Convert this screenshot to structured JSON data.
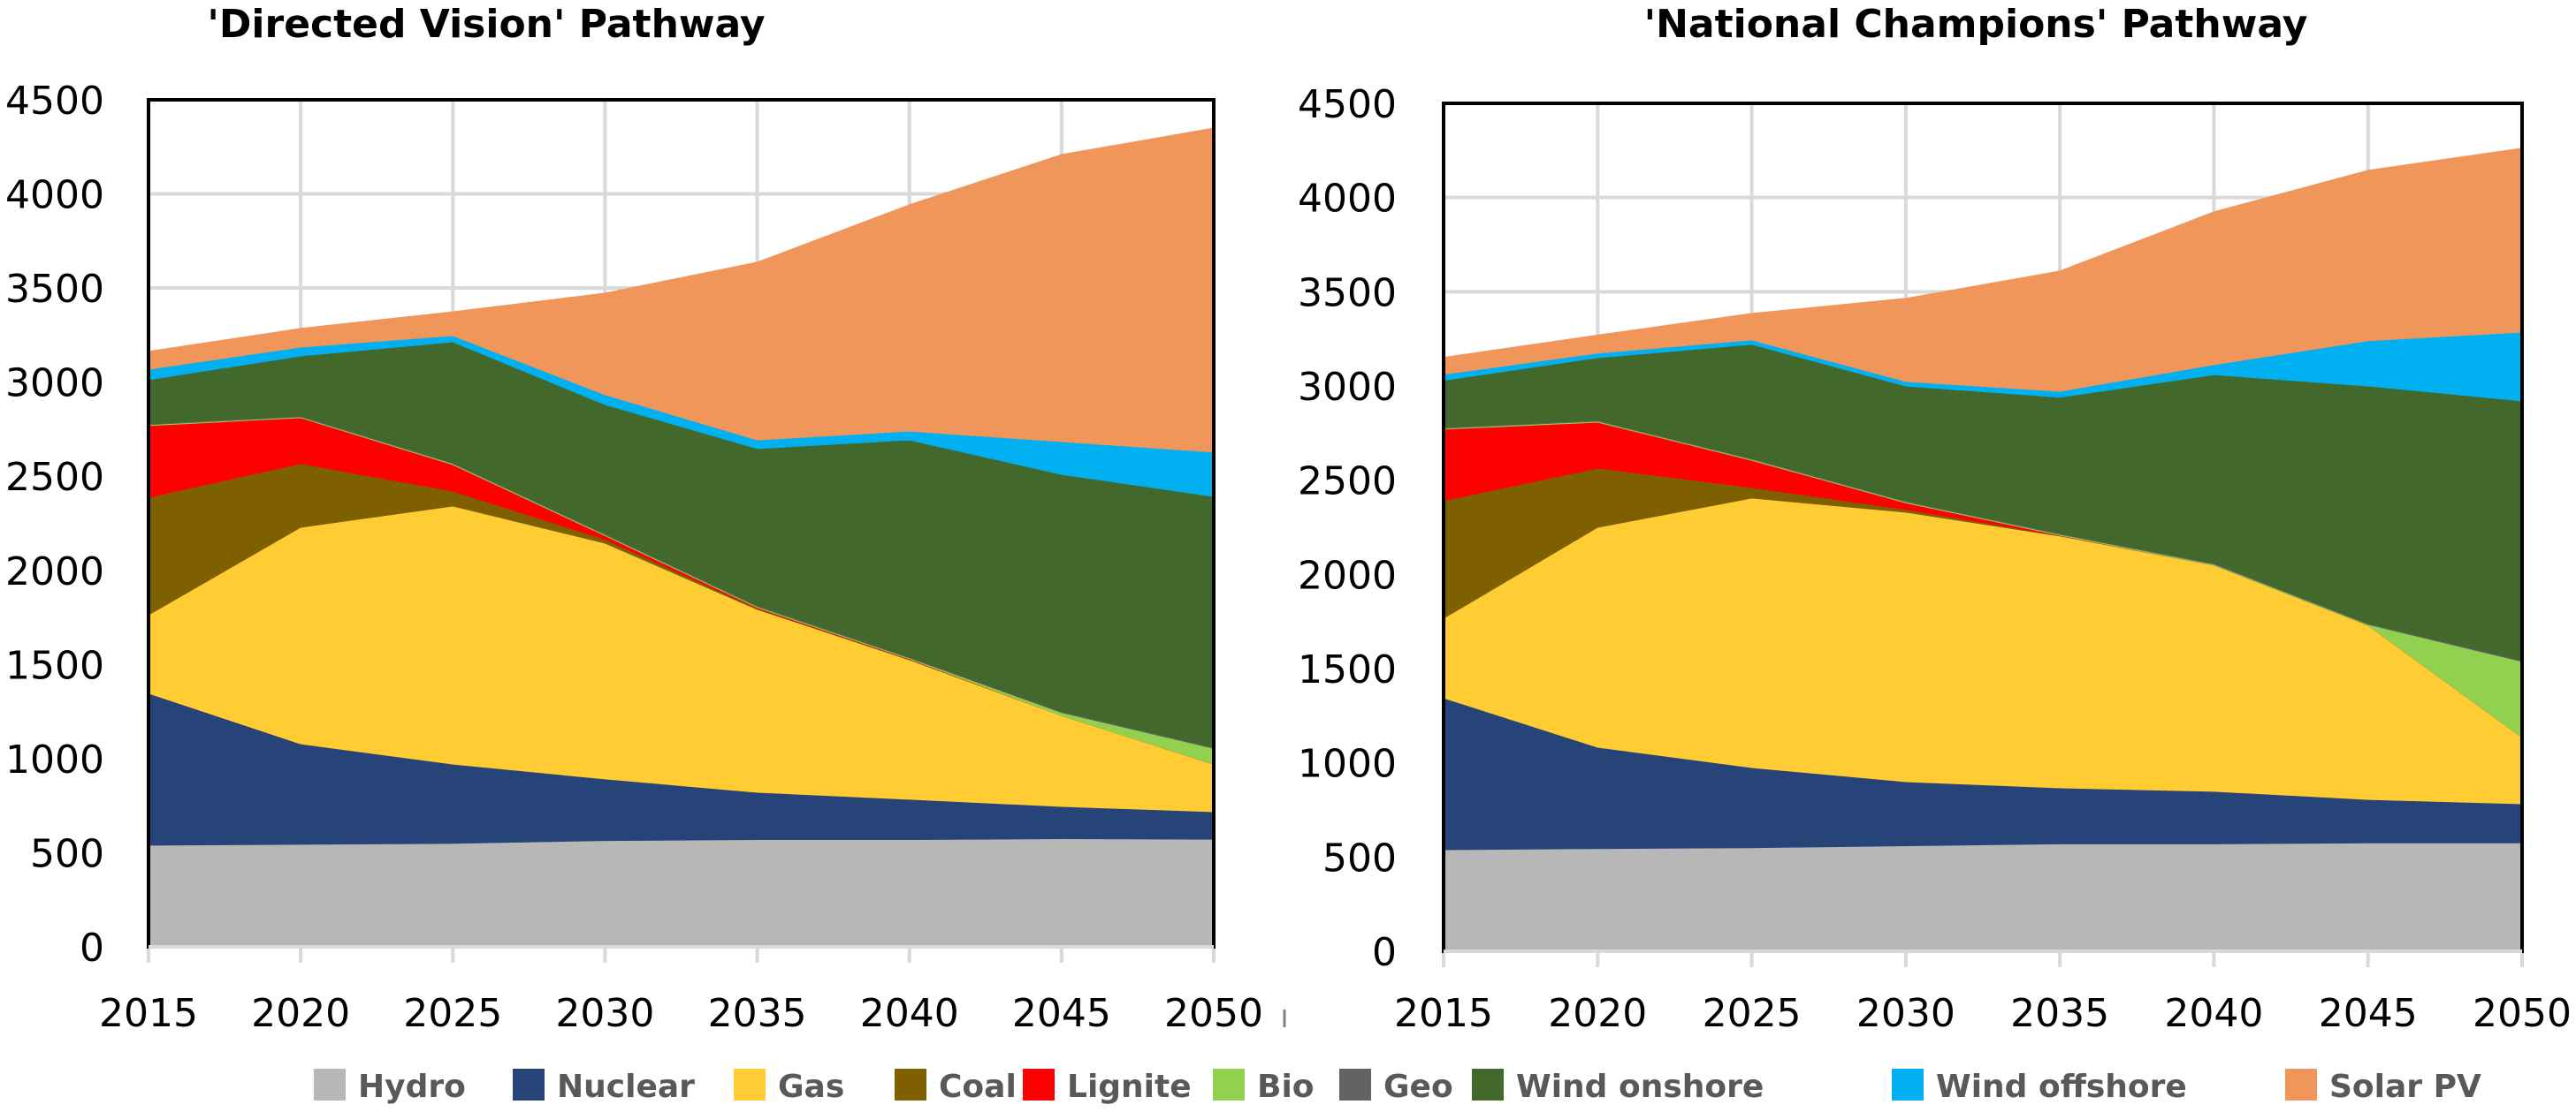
{
  "chart_data": [
    {
      "type": "area",
      "stacked": true,
      "title": "'Directed Vision' Pathway",
      "xlabel": "",
      "ylabel": "",
      "x": [
        2015,
        2020,
        2025,
        2030,
        2035,
        2040,
        2045,
        2050
      ],
      "x_tick_labels": [
        "2015",
        "2020",
        "2025",
        "2030",
        "2035",
        "2040",
        "2045",
        "2050"
      ],
      "y_tick_labels": [
        "0",
        "500",
        "1000",
        "1500",
        "2000",
        "2500",
        "3000",
        "3500",
        "4000",
        "4500"
      ],
      "ylim": [
        0,
        4500
      ],
      "grid": true,
      "series": [
        {
          "name": "Hydro",
          "color": "#b7b7b7",
          "values": [
            540,
            545,
            550,
            565,
            570,
            570,
            575,
            572
          ]
        },
        {
          "name": "Nuclear",
          "color": "#264478",
          "values": [
            807,
            534,
            421,
            327,
            251,
            214,
            171,
            146
          ]
        },
        {
          "name": "Gas",
          "color": "#ffcc33",
          "values": [
            417,
            1150,
            1371,
            1253,
            972,
            741,
            483,
            253
          ]
        },
        {
          "name": "Coal",
          "color": "#7f6000",
          "values": [
            624,
            338,
            79,
            20,
            5,
            3,
            0,
            0
          ]
        },
        {
          "name": "Lignite",
          "color": "#ff0000",
          "values": [
            381,
            244,
            141,
            20,
            5,
            2,
            0,
            0
          ]
        },
        {
          "name": "Bio",
          "color": "#92d050",
          "values": [
            5,
            5,
            5,
            5,
            5,
            5,
            16,
            84
          ]
        },
        {
          "name": "Geo",
          "color": "#636363",
          "values": [
            5,
            5,
            5,
            5,
            5,
            5,
            5,
            5
          ]
        },
        {
          "name": "Wind onshore",
          "color": "#43682b",
          "values": [
            234,
            318,
            642,
            686,
            834,
            1153,
            1260,
            1333
          ]
        },
        {
          "name": "Wind offshore",
          "color": "#00b0f0",
          "values": [
            56,
            47,
            33,
            52,
            46,
            47,
            174,
            235
          ]
        },
        {
          "name": "Solar PV",
          "color": "#f0965a",
          "values": [
            94,
            99,
            127,
            540,
            944,
            1202,
            1525,
            1722
          ]
        }
      ]
    },
    {
      "type": "area",
      "stacked": true,
      "title": "'National Champions' Pathway",
      "xlabel": "",
      "ylabel": "",
      "x": [
        2015,
        2020,
        2025,
        2030,
        2035,
        2040,
        2045,
        2050
      ],
      "x_tick_labels": [
        "2015",
        "2020",
        "2025",
        "2030",
        "2035",
        "2040",
        "2045",
        "2050"
      ],
      "y_tick_labels": [
        "0",
        "500",
        "1000",
        "1500",
        "2000",
        "2500",
        "3000",
        "3500",
        "4000",
        "4500"
      ],
      "ylim": [
        0,
        4500
      ],
      "grid": true,
      "series": [
        {
          "name": "Hydro",
          "color": "#b7b7b7",
          "values": [
            539,
            545,
            550,
            560,
            570,
            570,
            575,
            575
          ]
        },
        {
          "name": "Nuclear",
          "color": "#264478",
          "values": [
            806,
            538,
            425,
            340,
            297,
            279,
            231,
            208
          ]
        },
        {
          "name": "Gas",
          "color": "#ffcc33",
          "values": [
            422,
            1167,
            1430,
            1430,
            1337,
            1200,
            924,
            352
          ]
        },
        {
          "name": "Coal",
          "color": "#7f6000",
          "values": [
            624,
            314,
            56,
            15,
            2,
            0,
            0,
            0
          ]
        },
        {
          "name": "Lignite",
          "color": "#ff0000",
          "values": [
            380,
            244,
            145,
            35,
            2,
            0,
            0,
            0
          ]
        },
        {
          "name": "Bio",
          "color": "#92d050",
          "values": [
            5,
            5,
            5,
            5,
            5,
            5,
            5,
            403
          ]
        },
        {
          "name": "Geo",
          "color": "#636363",
          "values": [
            5,
            5,
            5,
            5,
            5,
            5,
            5,
            5
          ]
        },
        {
          "name": "Wind onshore",
          "color": "#43682b",
          "values": [
            249,
            332,
            605,
            610,
            722,
            1001,
            1260,
            1378
          ]
        },
        {
          "name": "Wind offshore",
          "color": "#00b0f0",
          "values": [
            32,
            25,
            23,
            24,
            32,
            53,
            240,
            365
          ]
        },
        {
          "name": "Solar PV",
          "color": "#f0965a",
          "values": [
            90,
            95,
            141,
            441,
            638,
            811,
            904,
            976
          ]
        }
      ]
    }
  ],
  "legend": {
    "position": "bottom",
    "items": [
      {
        "label": "Hydro",
        "color": "#b7b7b7"
      },
      {
        "label": "Nuclear",
        "color": "#264478"
      },
      {
        "label": "Gas",
        "color": "#ffcc33"
      },
      {
        "label": "Coal",
        "color": "#7f6000"
      },
      {
        "label": "Lignite",
        "color": "#ff0000"
      },
      {
        "label": "Bio",
        "color": "#92d050"
      },
      {
        "label": "Geo",
        "color": "#636363"
      },
      {
        "label": "Wind onshore",
        "color": "#43682b"
      },
      {
        "label": "Wind offshore",
        "color": "#00b0f0"
      },
      {
        "label": "Solar PV",
        "color": "#f0965a"
      }
    ]
  }
}
